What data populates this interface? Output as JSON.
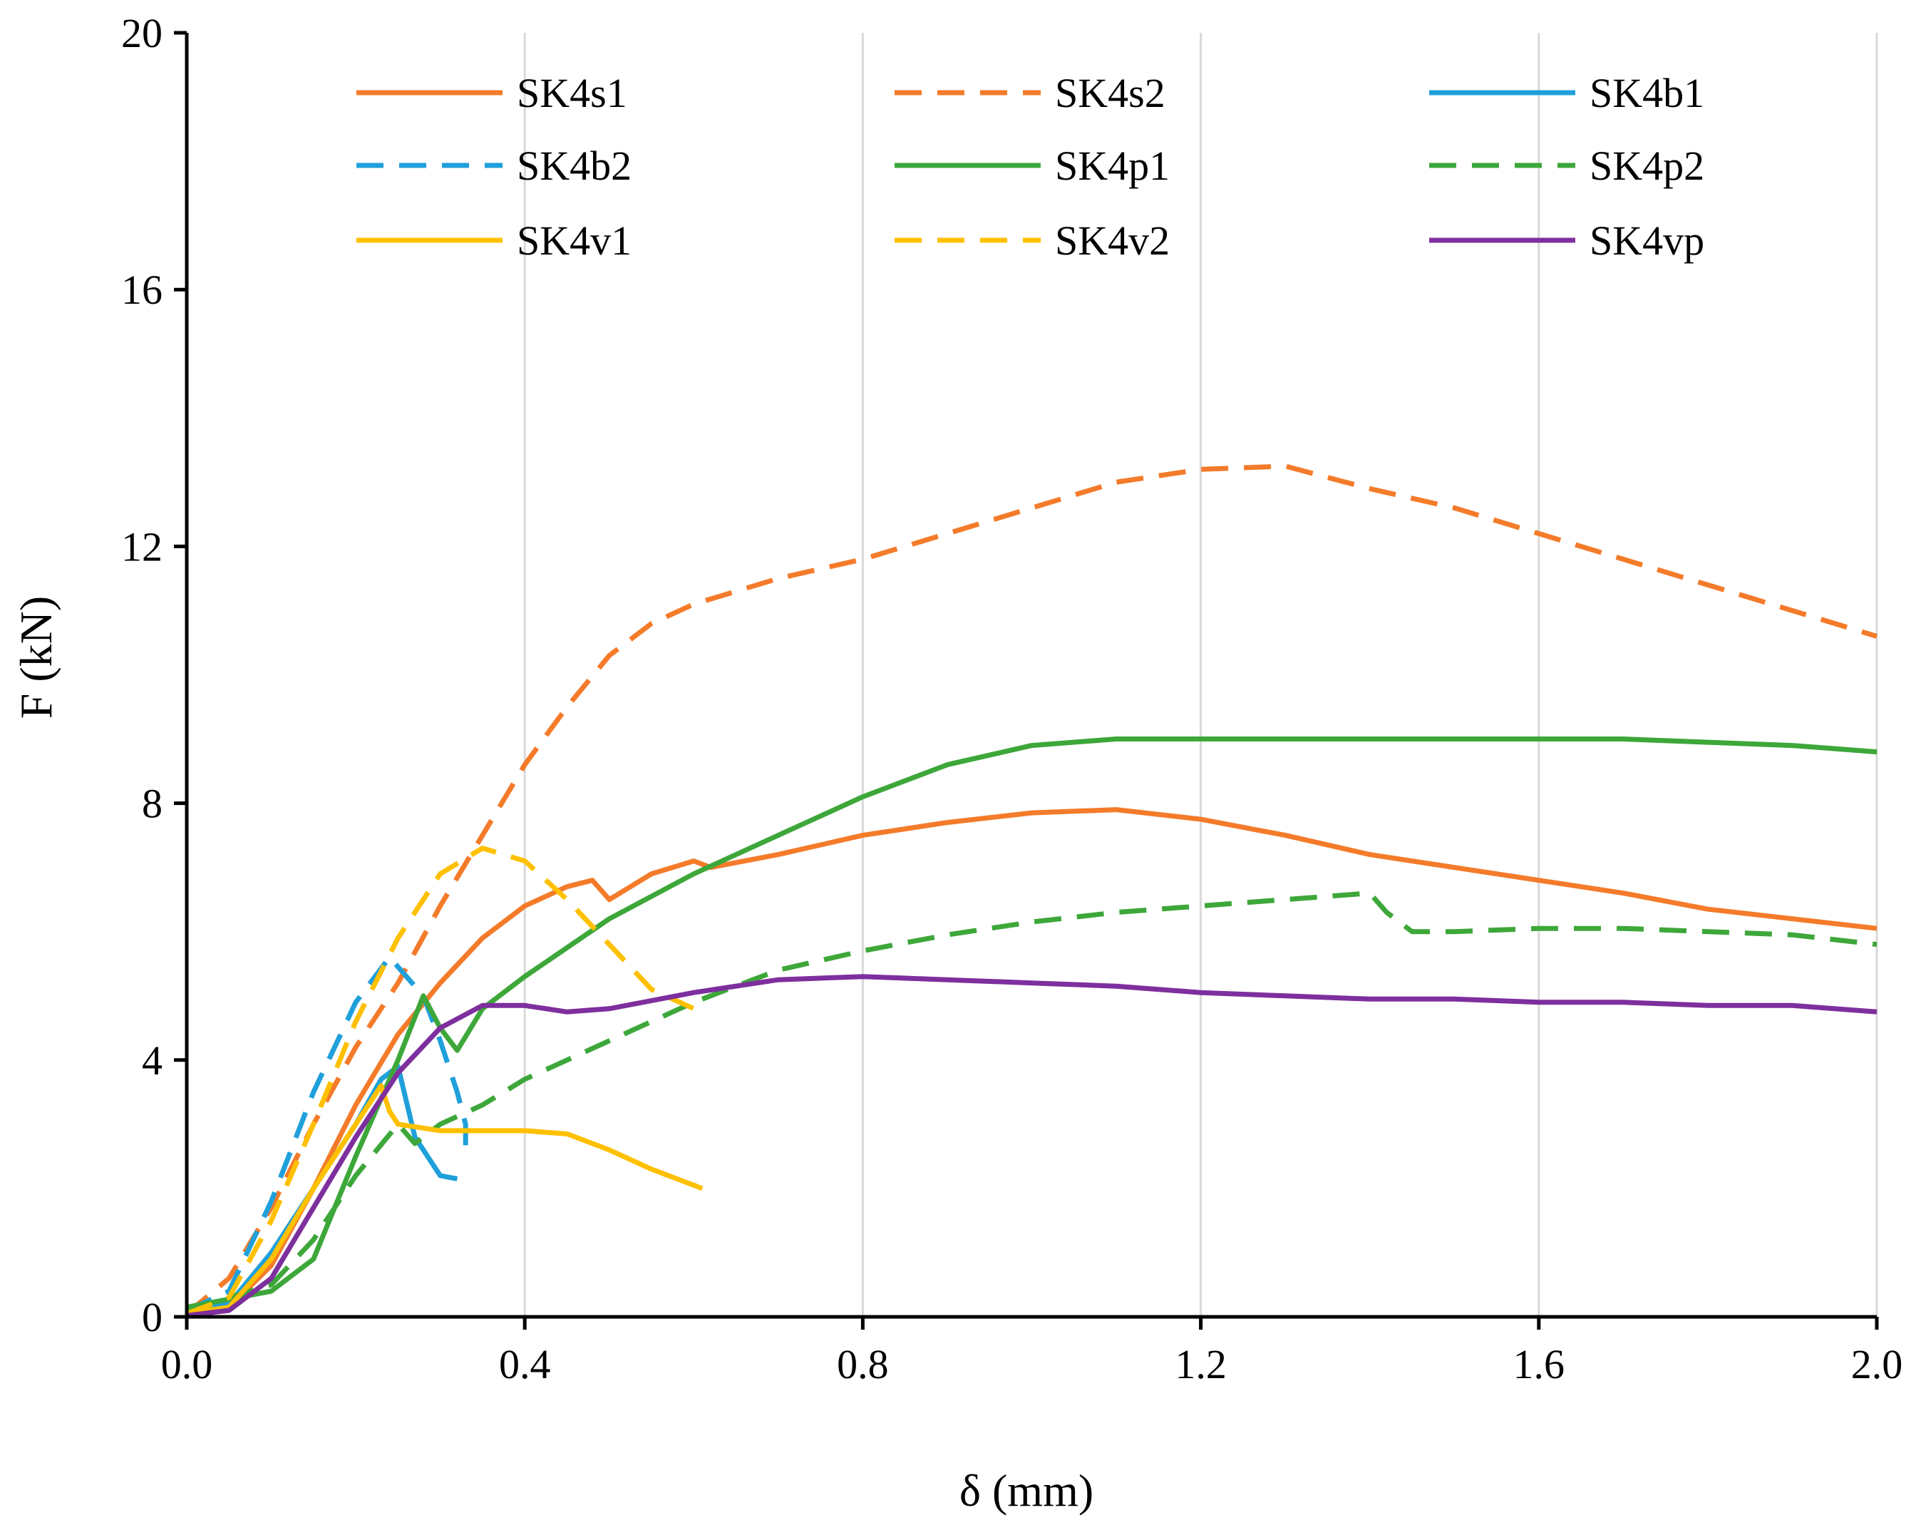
{
  "chart_data": {
    "type": "line",
    "title": "",
    "xlabel": "δ (mm)",
    "ylabel": "F (kN)",
    "xlim": [
      0,
      2.0
    ],
    "ylim": [
      0,
      20
    ],
    "xticks": [
      0.0,
      0.4,
      0.8,
      1.2,
      1.6,
      2.0
    ],
    "xtick_labels": [
      "0.0",
      "0.4",
      "0.8",
      "1.2",
      "1.6",
      "2.0"
    ],
    "yticks": [
      0,
      4,
      8,
      12,
      16,
      20
    ],
    "ytick_labels": [
      "0",
      "4",
      "8",
      "12",
      "16",
      "20"
    ],
    "grid": "vertical",
    "legend_position": "top",
    "series": [
      {
        "name": "SK4s1",
        "color": "#F47B2A",
        "dash": false,
        "points": [
          [
            0,
            0.05
          ],
          [
            0.05,
            0.15
          ],
          [
            0.1,
            0.8
          ],
          [
            0.15,
            2.0
          ],
          [
            0.2,
            3.3
          ],
          [
            0.25,
            4.4
          ],
          [
            0.3,
            5.2
          ],
          [
            0.35,
            5.9
          ],
          [
            0.4,
            6.4
          ],
          [
            0.45,
            6.7
          ],
          [
            0.48,
            6.8
          ],
          [
            0.5,
            6.5
          ],
          [
            0.55,
            6.9
          ],
          [
            0.6,
            7.1
          ],
          [
            0.62,
            7.0
          ],
          [
            0.7,
            7.2
          ],
          [
            0.8,
            7.5
          ],
          [
            0.9,
            7.7
          ],
          [
            1.0,
            7.85
          ],
          [
            1.1,
            7.9
          ],
          [
            1.2,
            7.75
          ],
          [
            1.3,
            7.5
          ],
          [
            1.4,
            7.2
          ],
          [
            1.5,
            7.0
          ],
          [
            1.6,
            6.8
          ],
          [
            1.7,
            6.6
          ],
          [
            1.8,
            6.35
          ],
          [
            1.9,
            6.2
          ],
          [
            2.0,
            6.05
          ]
        ]
      },
      {
        "name": "SK4s2",
        "color": "#F47B2A",
        "dash": true,
        "points": [
          [
            0,
            0.05
          ],
          [
            0.05,
            0.6
          ],
          [
            0.1,
            1.7
          ],
          [
            0.15,
            3.0
          ],
          [
            0.2,
            4.2
          ],
          [
            0.25,
            5.2
          ],
          [
            0.3,
            6.4
          ],
          [
            0.35,
            7.5
          ],
          [
            0.4,
            8.6
          ],
          [
            0.45,
            9.5
          ],
          [
            0.5,
            10.3
          ],
          [
            0.55,
            10.8
          ],
          [
            0.6,
            11.1
          ],
          [
            0.7,
            11.5
          ],
          [
            0.8,
            11.8
          ],
          [
            0.9,
            12.2
          ],
          [
            1.0,
            12.6
          ],
          [
            1.1,
            13.0
          ],
          [
            1.2,
            13.2
          ],
          [
            1.3,
            13.25
          ],
          [
            1.4,
            12.9
          ],
          [
            1.5,
            12.6
          ],
          [
            1.6,
            12.2
          ],
          [
            1.7,
            11.8
          ],
          [
            1.8,
            11.4
          ],
          [
            1.9,
            11.0
          ],
          [
            2.0,
            10.6
          ]
        ]
      },
      {
        "name": "SK4b1",
        "color": "#1FA0DB",
        "dash": false,
        "points": [
          [
            0,
            0.1
          ],
          [
            0.05,
            0.2
          ],
          [
            0.1,
            1.0
          ],
          [
            0.15,
            2.0
          ],
          [
            0.2,
            3.0
          ],
          [
            0.23,
            3.7
          ],
          [
            0.25,
            3.9
          ],
          [
            0.27,
            2.8
          ],
          [
            0.3,
            2.2
          ],
          [
            0.32,
            2.15
          ]
        ]
      },
      {
        "name": "SK4b2",
        "color": "#1FA0DB",
        "dash": true,
        "points": [
          [
            0,
            0.1
          ],
          [
            0.05,
            0.4
          ],
          [
            0.1,
            1.8
          ],
          [
            0.15,
            3.5
          ],
          [
            0.2,
            4.9
          ],
          [
            0.24,
            5.6
          ],
          [
            0.26,
            5.3
          ],
          [
            0.28,
            5.0
          ],
          [
            0.3,
            4.3
          ],
          [
            0.32,
            3.5
          ],
          [
            0.33,
            3.0
          ],
          [
            0.33,
            2.5
          ]
        ]
      },
      {
        "name": "SK4p1",
        "color": "#3DA73A",
        "dash": false,
        "points": [
          [
            0,
            0.15
          ],
          [
            0.1,
            0.4
          ],
          [
            0.15,
            0.9
          ],
          [
            0.2,
            2.5
          ],
          [
            0.25,
            4.0
          ],
          [
            0.28,
            5.0
          ],
          [
            0.3,
            4.5
          ],
          [
            0.32,
            4.15
          ],
          [
            0.35,
            4.8
          ],
          [
            0.4,
            5.3
          ],
          [
            0.5,
            6.2
          ],
          [
            0.6,
            6.9
          ],
          [
            0.7,
            7.5
          ],
          [
            0.8,
            8.1
          ],
          [
            0.9,
            8.6
          ],
          [
            1.0,
            8.9
          ],
          [
            1.1,
            9.0
          ],
          [
            1.2,
            9.0
          ],
          [
            1.3,
            9.0
          ],
          [
            1.4,
            9.0
          ],
          [
            1.5,
            9.0
          ],
          [
            1.6,
            9.0
          ],
          [
            1.7,
            9.0
          ],
          [
            1.8,
            8.95
          ],
          [
            1.9,
            8.9
          ],
          [
            2.0,
            8.8
          ]
        ]
      },
      {
        "name": "SK4p2",
        "color": "#3DA73A",
        "dash": true,
        "points": [
          [
            0,
            0.1
          ],
          [
            0.1,
            0.5
          ],
          [
            0.15,
            1.2
          ],
          [
            0.2,
            2.2
          ],
          [
            0.25,
            3.0
          ],
          [
            0.27,
            2.7
          ],
          [
            0.3,
            3.0
          ],
          [
            0.35,
            3.3
          ],
          [
            0.4,
            3.7
          ],
          [
            0.5,
            4.3
          ],
          [
            0.6,
            4.9
          ],
          [
            0.7,
            5.4
          ],
          [
            0.8,
            5.7
          ],
          [
            0.9,
            5.95
          ],
          [
            1.0,
            6.15
          ],
          [
            1.1,
            6.3
          ],
          [
            1.2,
            6.4
          ],
          [
            1.3,
            6.5
          ],
          [
            1.4,
            6.6
          ],
          [
            1.42,
            6.3
          ],
          [
            1.45,
            6.0
          ],
          [
            1.5,
            6.0
          ],
          [
            1.6,
            6.05
          ],
          [
            1.7,
            6.05
          ],
          [
            1.8,
            6.0
          ],
          [
            1.9,
            5.95
          ],
          [
            2.0,
            5.8
          ]
        ]
      },
      {
        "name": "SK4v1",
        "color": "#FFC000",
        "dash": false,
        "points": [
          [
            0,
            0.05
          ],
          [
            0.05,
            0.15
          ],
          [
            0.1,
            0.9
          ],
          [
            0.15,
            2.0
          ],
          [
            0.2,
            3.0
          ],
          [
            0.23,
            3.6
          ],
          [
            0.24,
            3.2
          ],
          [
            0.25,
            3.0
          ],
          [
            0.3,
            2.9
          ],
          [
            0.35,
            2.9
          ],
          [
            0.4,
            2.9
          ],
          [
            0.45,
            2.85
          ],
          [
            0.5,
            2.6
          ],
          [
            0.55,
            2.3
          ],
          [
            0.6,
            2.05
          ],
          [
            0.61,
            2.0
          ]
        ]
      },
      {
        "name": "SK4v2",
        "color": "#FFC000",
        "dash": true,
        "points": [
          [
            0,
            0.05
          ],
          [
            0.05,
            0.3
          ],
          [
            0.1,
            1.5
          ],
          [
            0.15,
            3.0
          ],
          [
            0.2,
            4.6
          ],
          [
            0.25,
            5.9
          ],
          [
            0.3,
            6.9
          ],
          [
            0.35,
            7.3
          ],
          [
            0.4,
            7.1
          ],
          [
            0.45,
            6.5
          ],
          [
            0.5,
            5.8
          ],
          [
            0.55,
            5.1
          ],
          [
            0.6,
            4.8
          ]
        ]
      },
      {
        "name": "SK4vp",
        "color": "#7E2F9E",
        "dash": false,
        "points": [
          [
            0,
            0.02
          ],
          [
            0.05,
            0.1
          ],
          [
            0.1,
            0.6
          ],
          [
            0.15,
            1.7
          ],
          [
            0.2,
            2.8
          ],
          [
            0.25,
            3.8
          ],
          [
            0.3,
            4.5
          ],
          [
            0.35,
            4.85
          ],
          [
            0.4,
            4.85
          ],
          [
            0.45,
            4.75
          ],
          [
            0.5,
            4.8
          ],
          [
            0.6,
            5.05
          ],
          [
            0.7,
            5.25
          ],
          [
            0.8,
            5.3
          ],
          [
            0.9,
            5.25
          ],
          [
            1.0,
            5.2
          ],
          [
            1.1,
            5.15
          ],
          [
            1.2,
            5.05
          ],
          [
            1.3,
            5.0
          ],
          [
            1.4,
            4.95
          ],
          [
            1.5,
            4.95
          ],
          [
            1.6,
            4.9
          ],
          [
            1.7,
            4.9
          ],
          [
            1.8,
            4.85
          ],
          [
            1.9,
            4.85
          ],
          [
            2.0,
            4.75
          ]
        ]
      }
    ]
  }
}
